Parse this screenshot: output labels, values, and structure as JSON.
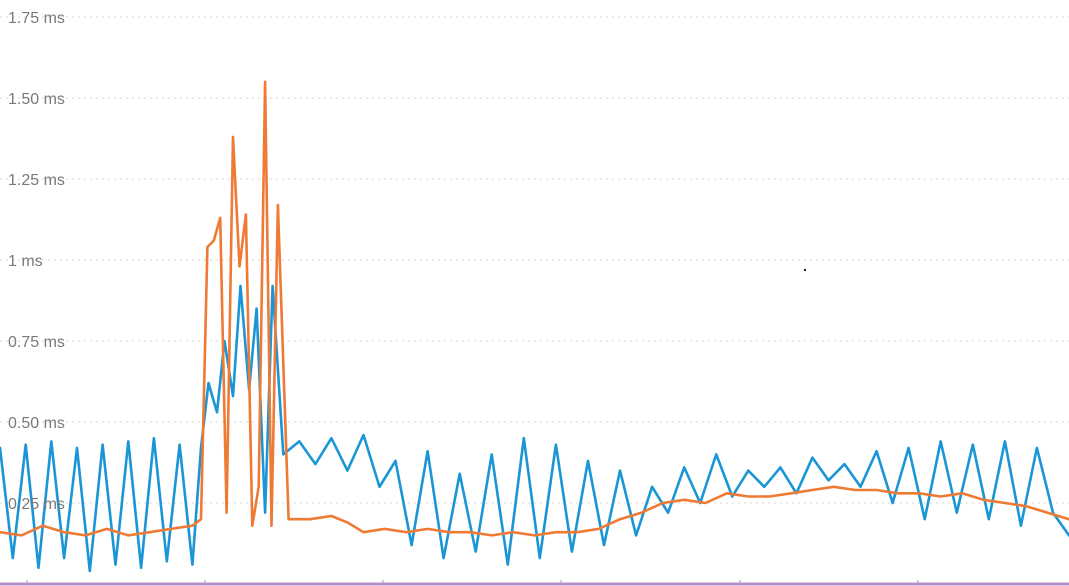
{
  "colors": {
    "series_blue": "#1a96d6",
    "series_orange": "#ef7a33",
    "axis_baseline": "#b48cc7",
    "grid": "#d7d7d7",
    "tick_text": "#7a7a7a"
  },
  "chart_data": {
    "type": "line",
    "title": "",
    "xlabel": "",
    "ylabel": "",
    "ylim": [
      0,
      1.75
    ],
    "grid": true,
    "legend": "none",
    "y_ticks": [
      {
        "value": 0.25,
        "label": "0.25 ms"
      },
      {
        "value": 0.5,
        "label": "0.50 ms"
      },
      {
        "value": 0.75,
        "label": "0.75 ms"
      },
      {
        "value": 1.0,
        "label": "1 ms"
      },
      {
        "value": 1.25,
        "label": "1.25 ms"
      },
      {
        "value": 1.5,
        "label": "1.50 ms"
      },
      {
        "value": 1.75,
        "label": "1.75 ms"
      }
    ],
    "x_ticks": [
      0,
      1,
      2,
      3,
      4,
      5
    ],
    "xlim": [
      0,
      100
    ],
    "series": [
      {
        "color": "#1a96d6",
        "x": [
          0,
          1.2,
          2.4,
          3.6,
          4.8,
          6,
          7.2,
          8.4,
          9.6,
          10.8,
          12,
          13.2,
          14.4,
          15.6,
          16.8,
          18,
          18.8,
          19.5,
          20.3,
          21,
          21.8,
          22.5,
          23.3,
          24,
          24.8,
          25.5,
          26.5,
          28,
          29.5,
          31,
          32.5,
          34,
          35.5,
          37,
          38.5,
          40,
          41.5,
          43,
          44.5,
          46,
          47.5,
          49,
          50.5,
          52,
          53.5,
          55,
          56.5,
          58,
          59.5,
          61,
          62.5,
          64,
          65.5,
          67,
          68.5,
          70,
          71.5,
          73,
          74.5,
          76,
          77.5,
          79,
          80.5,
          82,
          83.5,
          85,
          86.5,
          88,
          89.5,
          91,
          92.5,
          94,
          95.5,
          97,
          98.5,
          100
        ],
        "values": [
          0.42,
          0.08,
          0.43,
          0.05,
          0.44,
          0.08,
          0.42,
          0.04,
          0.43,
          0.06,
          0.44,
          0.05,
          0.45,
          0.07,
          0.43,
          0.06,
          0.42,
          0.62,
          0.53,
          0.75,
          0.58,
          0.92,
          0.6,
          0.85,
          0.22,
          0.92,
          0.4,
          0.44,
          0.37,
          0.45,
          0.35,
          0.46,
          0.3,
          0.38,
          0.12,
          0.41,
          0.08,
          0.34,
          0.1,
          0.4,
          0.06,
          0.45,
          0.08,
          0.43,
          0.1,
          0.38,
          0.12,
          0.35,
          0.15,
          0.3,
          0.22,
          0.36,
          0.25,
          0.4,
          0.27,
          0.35,
          0.3,
          0.36,
          0.28,
          0.39,
          0.32,
          0.37,
          0.3,
          0.41,
          0.25,
          0.42,
          0.2,
          0.44,
          0.22,
          0.43,
          0.2,
          0.44,
          0.18,
          0.42,
          0.22,
          0.15
        ]
      },
      {
        "color": "#ef7a33",
        "x": [
          0,
          2,
          4,
          6,
          8,
          10,
          12,
          14,
          16,
          18,
          18.8,
          19.4,
          20,
          20.6,
          21.2,
          21.8,
          22.4,
          23,
          23.6,
          24.2,
          24.8,
          25.4,
          26,
          27,
          29,
          31,
          32.5,
          34,
          36,
          38,
          40,
          42,
          44,
          46,
          48,
          50,
          52,
          54,
          56,
          58,
          60,
          62,
          64,
          66,
          68,
          70,
          72,
          74,
          76,
          78,
          80,
          82,
          84,
          86,
          88,
          90,
          92,
          94,
          96,
          98,
          100
        ],
        "values": [
          0.16,
          0.15,
          0.18,
          0.16,
          0.15,
          0.17,
          0.15,
          0.16,
          0.17,
          0.18,
          0.2,
          1.04,
          1.06,
          1.13,
          0.22,
          1.38,
          0.98,
          1.14,
          0.18,
          0.3,
          1.55,
          0.18,
          1.17,
          0.2,
          0.2,
          0.21,
          0.19,
          0.16,
          0.17,
          0.16,
          0.17,
          0.16,
          0.16,
          0.15,
          0.16,
          0.15,
          0.16,
          0.16,
          0.17,
          0.2,
          0.22,
          0.25,
          0.26,
          0.25,
          0.28,
          0.27,
          0.27,
          0.28,
          0.29,
          0.3,
          0.29,
          0.29,
          0.28,
          0.28,
          0.27,
          0.28,
          0.26,
          0.25,
          0.24,
          0.22,
          0.2
        ]
      }
    ]
  }
}
